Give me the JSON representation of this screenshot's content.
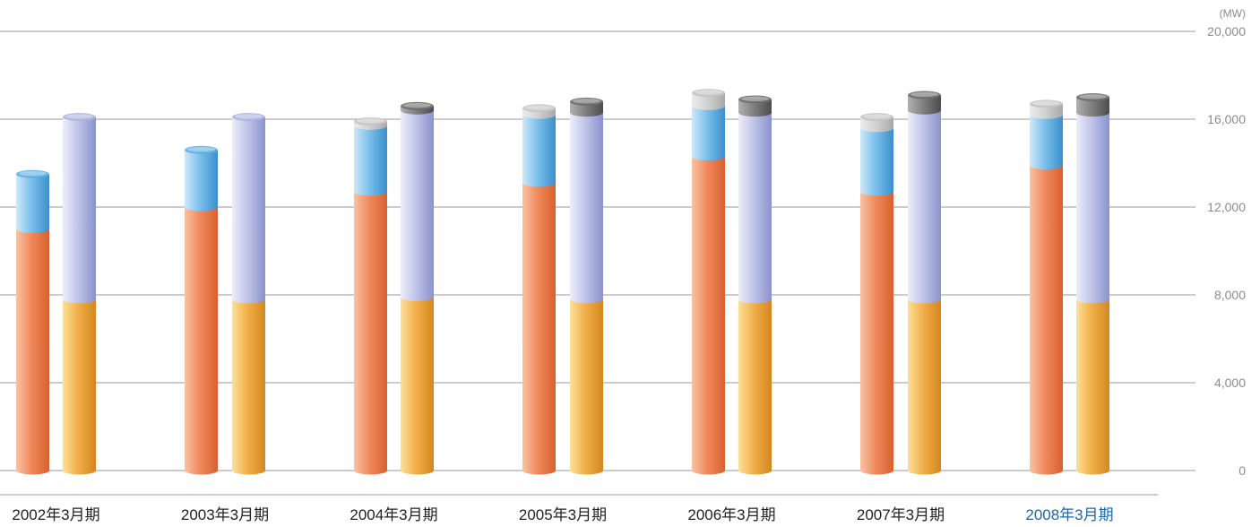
{
  "chart_data": {
    "type": "bar",
    "unit": "(MW)",
    "ylim": [
      0,
      20000
    ],
    "y_ticks": [
      "0",
      "4,000",
      "8,000",
      "12,000",
      "16,000",
      "20,000"
    ],
    "y_tick_values": [
      0,
      4000,
      8000,
      12000,
      16000,
      20000
    ],
    "grid": true,
    "highlight_category": "2008年3月期",
    "categories": [
      "2002年3月期",
      "2003年3月期",
      "2004年3月期",
      "2005年3月期",
      "2006年3月期",
      "2007年3月期",
      "2008年3月期"
    ],
    "bars": [
      {
        "position": "left",
        "series": [
          {
            "color": "#f08a5d",
            "values": [
              11000,
              12000,
              12700,
              13100,
              14300,
              12700,
              13900
            ]
          },
          {
            "color": "#5fb0e3",
            "values": [
              2500,
              2600,
              3000,
              3100,
              2300,
              2900,
              2300
            ]
          },
          {
            "color": "#c4c4c4",
            "values": [
              0,
              0,
              200,
              300,
              600,
              500,
              500
            ]
          }
        ]
      },
      {
        "position": "right",
        "series": [
          {
            "color": "#f0a83c",
            "values": [
              7800,
              7800,
              7900,
              7800,
              7800,
              7800,
              7800
            ]
          },
          {
            "color": "#aeb4df",
            "values": [
              8300,
              8300,
              8500,
              8500,
              8500,
              8600,
              8500
            ]
          },
          {
            "color": "#6e6e6e",
            "values": [
              0,
              0,
              200,
              500,
              600,
              700,
              700
            ]
          }
        ]
      }
    ]
  }
}
